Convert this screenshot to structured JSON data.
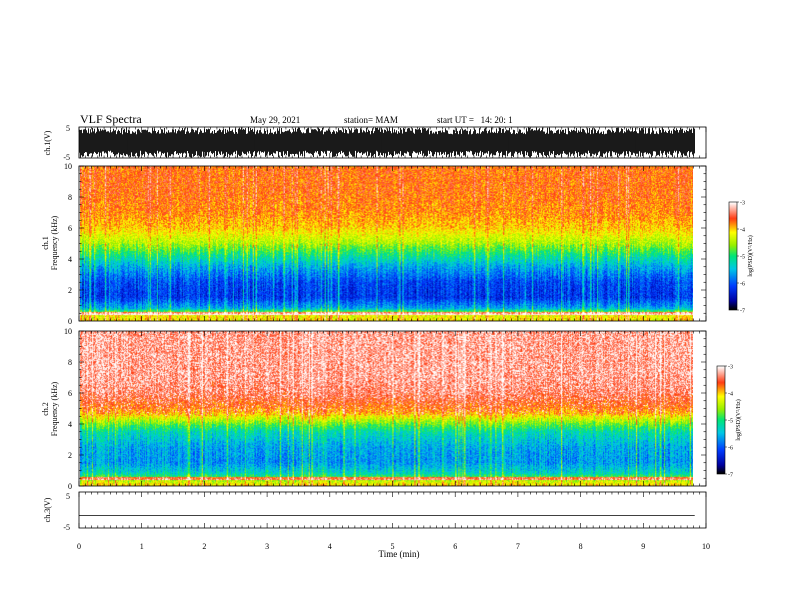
{
  "header": {
    "title": "VLF Spectra",
    "date": "May 29, 2021",
    "station": "station= MAM",
    "start": "start UT =   14: 20: 1"
  },
  "chart_data": [
    {
      "type": "line",
      "panel": "ch1-waveform",
      "ylabel": "ch.1(V)",
      "yticks": [
        "5",
        "-5"
      ],
      "ylim": [
        -5,
        5
      ],
      "signal": "dense broadband noise, amplitude near full scale",
      "color": "#000000"
    },
    {
      "type": "heatmap",
      "panel": "ch1-spectrogram",
      "ylabel_line1": "ch.1",
      "ylabel_line2": "Frequency (kHz)",
      "yticks": [
        "0",
        "2",
        "4",
        "6",
        "8",
        "10"
      ],
      "ylim": [
        0,
        10
      ],
      "profile_freq_khz": [
        0,
        0.4,
        0.8,
        1.5,
        2.5,
        3.5,
        4.2,
        5.0,
        6.0,
        7.0,
        8.5,
        10
      ],
      "profile_log_psd": [
        -4.1,
        -4.2,
        -5.6,
        -6.2,
        -6.1,
        -5.6,
        -5.1,
        -4.5,
        -4.0,
        -3.8,
        -3.7,
        -3.7
      ],
      "colorbar": {
        "label": "log(PSD)(V²/Hz)",
        "ticks": [
          "-3",
          "-4",
          "-5",
          "-6",
          "-7"
        ],
        "range": [
          -7,
          -3
        ]
      }
    },
    {
      "type": "heatmap",
      "panel": "ch2-spectrogram",
      "ylabel_line1": "ch.2",
      "ylabel_line2": "Frequency (kHz)",
      "yticks": [
        "0",
        "2",
        "4",
        "6",
        "8",
        "10"
      ],
      "ylim": [
        0,
        10
      ],
      "profile_freq_khz": [
        0,
        0.3,
        0.8,
        1.5,
        2.5,
        3.5,
        4.0,
        4.8,
        6.0,
        7.0,
        8.5,
        10
      ],
      "profile_log_psd": [
        -4.0,
        -4.4,
        -5.3,
        -5.7,
        -5.6,
        -5.2,
        -4.7,
        -3.8,
        -3.4,
        -3.3,
        -3.3,
        -3.3
      ],
      "colorbar": {
        "label": "log(PSD)(V²/Hz)",
        "ticks": [
          "-3",
          "-4",
          "-5",
          "-6",
          "-7"
        ],
        "range": [
          -7,
          -3
        ]
      }
    },
    {
      "type": "line",
      "panel": "ch3-waveform",
      "ylabel": "ch.3(V)",
      "yticks": [
        "5",
        "-5"
      ],
      "ylim": [
        -5,
        5
      ],
      "signal": "flat line near -1.5 V",
      "level": -1.5,
      "color": "#000000"
    }
  ],
  "xaxis": {
    "label": "Time (min)",
    "ticks": [
      "0",
      "1",
      "2",
      "3",
      "4",
      "5",
      "6",
      "7",
      "8",
      "9",
      "10"
    ],
    "xlim": [
      0,
      10
    ],
    "data_end": 9.82
  }
}
